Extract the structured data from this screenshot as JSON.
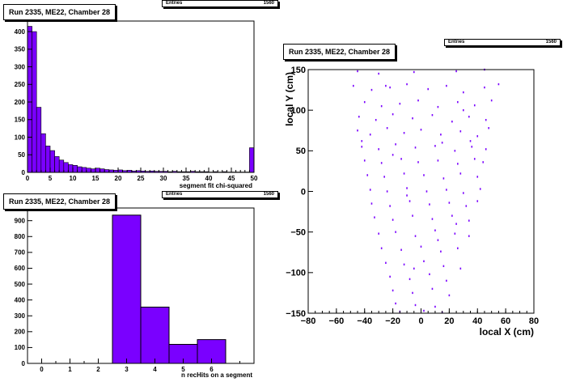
{
  "colors": {
    "fill": "#7a00ff",
    "line": "#000000",
    "background": "#ffffff"
  },
  "panels": {
    "chi2": {
      "title": "Run 2335, ME22, Chamber 28",
      "stats": {
        "label": "Entries",
        "value": "1560"
      }
    },
    "nhits": {
      "title": "Run 2335, ME22, Chamber 28",
      "stats": {
        "label": "Entries",
        "value": "1560"
      }
    },
    "xy": {
      "title": "Run 2335, ME22, Chamber 28",
      "stats": {
        "label": "Entries",
        "value": "1560"
      }
    }
  },
  "chart_data": [
    {
      "type": "bar",
      "id": "chi2",
      "title": "Run 2335, ME22, Chamber 28",
      "xlabel": "segment fit chi-squared",
      "ylabel": "",
      "xlim": [
        0,
        50
      ],
      "ylim": [
        0,
        430
      ],
      "xticks": [
        0,
        5,
        10,
        15,
        20,
        25,
        30,
        35,
        40,
        45,
        50
      ],
      "yticks": [
        0,
        50,
        100,
        150,
        200,
        250,
        300,
        350,
        400
      ],
      "bin_width": 1,
      "values": [
        415,
        400,
        185,
        110,
        75,
        62,
        45,
        35,
        28,
        22,
        20,
        16,
        14,
        12,
        10,
        12,
        10,
        8,
        7,
        6,
        7,
        5,
        6,
        4,
        5,
        4,
        3,
        4,
        3,
        3,
        3,
        2,
        3,
        2,
        2,
        2,
        3,
        2,
        2,
        2,
        1,
        2,
        1,
        2,
        1,
        1,
        1,
        1,
        1,
        70
      ]
    },
    {
      "type": "bar",
      "id": "nhits",
      "title": "Run 2335, ME22, Chamber 28",
      "xlabel": "n recHits on a segment",
      "ylabel": "",
      "xlim": [
        -0.5,
        7.5
      ],
      "ylim": [
        0,
        980
      ],
      "xticks": [
        0,
        1,
        2,
        3,
        4,
        5,
        6
      ],
      "yticks": [
        0,
        100,
        200,
        300,
        400,
        500,
        600,
        700,
        800,
        900
      ],
      "bins": [
        {
          "center": 3,
          "value": 935
        },
        {
          "center": 4,
          "value": 355
        },
        {
          "center": 5,
          "value": 120
        },
        {
          "center": 6,
          "value": 150
        }
      ]
    },
    {
      "type": "scatter",
      "id": "xy",
      "title": "Run 2335, ME22, Chamber 28",
      "xlabel": "local X (cm)",
      "ylabel": "local Y (cm)",
      "xlim": [
        -80,
        80
      ],
      "ylim": [
        -150,
        150
      ],
      "xticks": [
        -80,
        -60,
        -40,
        -20,
        0,
        20,
        40,
        60,
        80
      ],
      "yticks": [
        -150,
        -100,
        -50,
        0,
        50,
        100,
        150
      ],
      "points": [
        [
          -45,
          148
        ],
        [
          -30,
          145
        ],
        [
          -5,
          147
        ],
        [
          25,
          148
        ],
        [
          45,
          150
        ],
        [
          -48,
          130
        ],
        [
          -35,
          125
        ],
        [
          -22,
          128
        ],
        [
          -10,
          132
        ],
        [
          5,
          126
        ],
        [
          18,
          130
        ],
        [
          30,
          122
        ],
        [
          45,
          128
        ],
        [
          55,
          132
        ],
        [
          -40,
          110
        ],
        [
          -28,
          105
        ],
        [
          -15,
          108
        ],
        [
          -2,
          112
        ],
        [
          12,
          104
        ],
        [
          26,
          110
        ],
        [
          38,
          106
        ],
        [
          50,
          112
        ],
        [
          -44,
          92
        ],
        [
          -32,
          88
        ],
        [
          -20,
          95
        ],
        [
          -6,
          90
        ],
        [
          8,
          94
        ],
        [
          22,
          86
        ],
        [
          34,
          92
        ],
        [
          46,
          88
        ],
        [
          -45,
          75
        ],
        [
          -36,
          70
        ],
        [
          -24,
          78
        ],
        [
          -12,
          72
        ],
        [
          0,
          76
        ],
        [
          14,
          70
        ],
        [
          28,
          74
        ],
        [
          40,
          68
        ],
        [
          48,
          78
        ],
        [
          -42,
          55
        ],
        [
          -30,
          52
        ],
        [
          -18,
          58
        ],
        [
          -4,
          54
        ],
        [
          10,
          56
        ],
        [
          24,
          50
        ],
        [
          36,
          55
        ],
        [
          46,
          52
        ],
        [
          -40,
          38
        ],
        [
          -28,
          35
        ],
        [
          -14,
          40
        ],
        [
          -2,
          36
        ],
        [
          12,
          38
        ],
        [
          26,
          34
        ],
        [
          38,
          40
        ],
        [
          44,
          36
        ],
        [
          -38,
          20
        ],
        [
          -26,
          18
        ],
        [
          -12,
          22
        ],
        [
          2,
          20
        ],
        [
          16,
          16
        ],
        [
          28,
          22
        ],
        [
          40,
          18
        ],
        [
          -36,
          2
        ],
        [
          -24,
          0
        ],
        [
          -10,
          4
        ],
        [
          4,
          0
        ],
        [
          18,
          2
        ],
        [
          30,
          -2
        ],
        [
          42,
          3
        ],
        [
          -35,
          -15
        ],
        [
          -22,
          -18
        ],
        [
          -8,
          -12
        ],
        [
          6,
          -16
        ],
        [
          20,
          -14
        ],
        [
          32,
          -18
        ],
        [
          40,
          -12
        ],
        [
          -33,
          -32
        ],
        [
          -20,
          -35
        ],
        [
          -6,
          -30
        ],
        [
          8,
          -34
        ],
        [
          22,
          -30
        ],
        [
          34,
          -36
        ],
        [
          -30,
          -52
        ],
        [
          -18,
          -50
        ],
        [
          -4,
          -55
        ],
        [
          10,
          -48
        ],
        [
          24,
          -52
        ],
        [
          34,
          -55
        ],
        [
          -28,
          -70
        ],
        [
          -14,
          -72
        ],
        [
          0,
          -68
        ],
        [
          14,
          -74
        ],
        [
          26,
          -70
        ],
        [
          -25,
          -88
        ],
        [
          -12,
          -90
        ],
        [
          2,
          -86
        ],
        [
          16,
          -92
        ],
        [
          28,
          -95
        ],
        [
          -22,
          -105
        ],
        [
          -8,
          -108
        ],
        [
          6,
          -102
        ],
        [
          18,
          -110
        ],
        [
          -20,
          -122
        ],
        [
          -6,
          -125
        ],
        [
          8,
          -120
        ],
        [
          20,
          -128
        ],
        [
          -18,
          -138
        ],
        [
          -4,
          -140
        ],
        [
          10,
          -142
        ],
        [
          -15,
          -148
        ],
        [
          2,
          -147
        ],
        [
          15,
          -149
        ],
        [
          -42,
          62
        ],
        [
          -20,
          45
        ],
        [
          15,
          60
        ],
        [
          35,
          62
        ],
        [
          -10,
          -5
        ],
        [
          25,
          -40
        ],
        [
          -5,
          -95
        ],
        [
          12,
          -60
        ],
        [
          30,
          100
        ],
        [
          -25,
          130
        ]
      ]
    }
  ]
}
